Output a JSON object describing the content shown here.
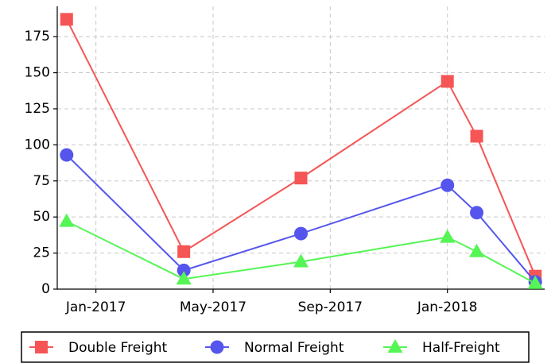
{
  "chart_data": {
    "type": "line",
    "x": [
      "2016-12",
      "2017-04",
      "2017-08",
      "2018-01",
      "2018-02",
      "2018-04"
    ],
    "series": [
      {
        "name": "Double Freight",
        "color": "#f55555",
        "marker": "square",
        "values": [
          187,
          26,
          77,
          144,
          106,
          9
        ]
      },
      {
        "name": "Normal Freight",
        "color": "#5555ee",
        "marker": "circle",
        "values": [
          93,
          13,
          38.5,
          72,
          53,
          5
        ]
      },
      {
        "name": "Half-Freight",
        "color": "#55f555",
        "marker": "triangle",
        "values": [
          47,
          7,
          19,
          36,
          26,
          4
        ]
      }
    ],
    "ylim": [
      0,
      196
    ],
    "yticks": [
      0,
      25,
      50,
      75,
      100,
      125,
      150,
      175
    ],
    "xticks": [
      {
        "value": "2017-01",
        "label": "Jan-2017"
      },
      {
        "value": "2017-05",
        "label": "May-2017"
      },
      {
        "value": "2017-09",
        "label": "Sep-2017"
      },
      {
        "value": "2018-01",
        "label": "Jan-2018"
      }
    ],
    "grid": true,
    "legend": "bottom"
  }
}
